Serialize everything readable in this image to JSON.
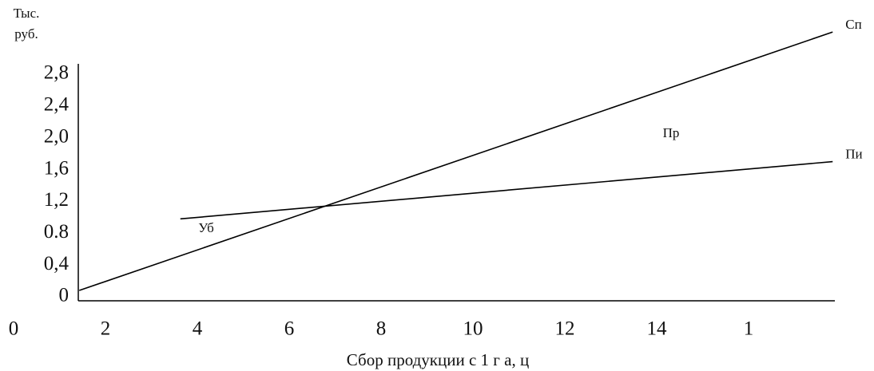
{
  "chart_data": {
    "type": "line",
    "y_label": [
      "Тыс.",
      "руб."
    ],
    "x_label": "Сбор  продукции  с  1  г а, ц",
    "annotations": [
      "Пр",
      "Уб"
    ],
    "series": [
      {
        "name": "Сп",
        "color": "#000000",
        "x": [
          1.5,
          17.9
        ],
        "values": [
          0.1,
          3.35
        ]
      },
      {
        "name": "Пи",
        "color": "#000000",
        "x": [
          3.7,
          17.9
        ],
        "values": [
          1.0,
          1.72
        ]
      }
    ],
    "xlim": [
      0,
      18
    ],
    "xticks": [
      0,
      2,
      4,
      6,
      8,
      10,
      12,
      14,
      {
        "value": 16,
        "label": "1"
      }
    ],
    "ylim": [
      0,
      3
    ],
    "yticks": [
      0,
      {
        "value": 0.4,
        "label": "0,4"
      },
      0.8,
      {
        "value": 1.2,
        "label": "1,2"
      },
      {
        "value": 1.6,
        "label": "1,6"
      },
      {
        "value": 2.0,
        "label": "2,0"
      },
      {
        "value": 2.4,
        "label": "2,4"
      },
      {
        "value": 2.8,
        "label": "2,8"
      }
    ],
    "grid": false
  }
}
